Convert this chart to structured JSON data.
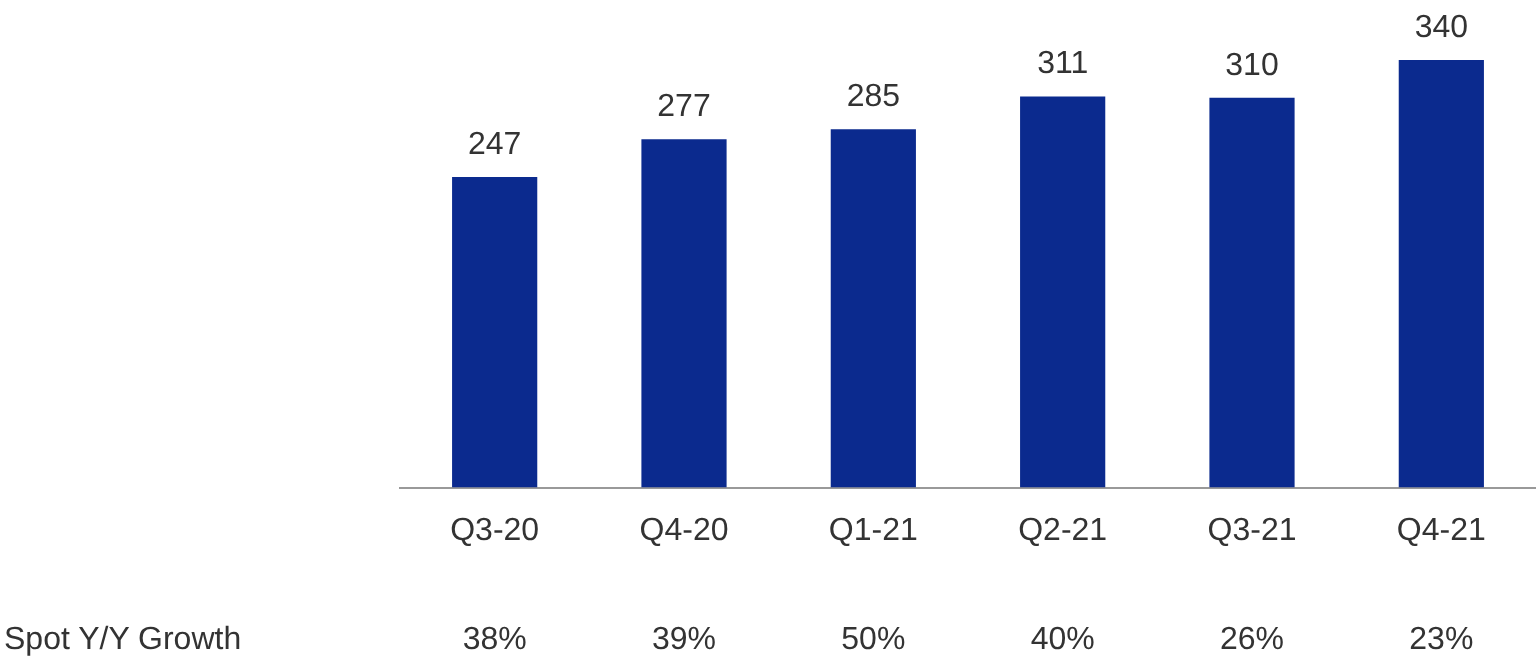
{
  "chart_data": {
    "type": "bar",
    "categories": [
      "Q3-20",
      "Q4-20",
      "Q1-21",
      "Q2-21",
      "Q3-21",
      "Q4-21"
    ],
    "values": [
      247,
      277,
      285,
      311,
      310,
      340
    ],
    "color": "#0b2a8e",
    "data_labels": true,
    "ylim": [
      0,
      340
    ],
    "tick_labels": "x",
    "grid": false,
    "legend": false,
    "annotations": [
      "Spot Y/Y Growth",
      "38%",
      "39%",
      "50%",
      "40%",
      "26%",
      "23%"
    ]
  }
}
